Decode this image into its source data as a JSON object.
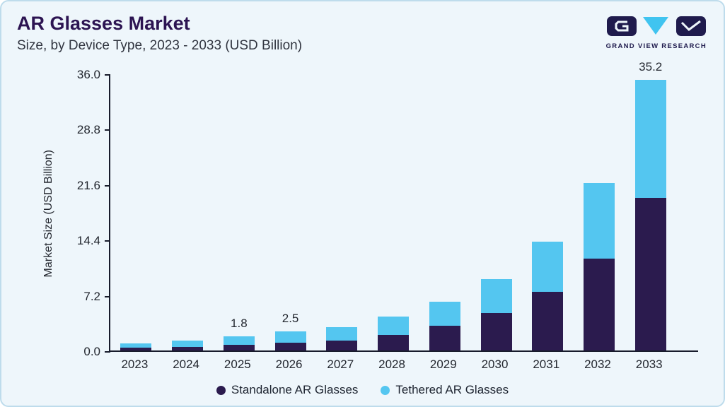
{
  "header": {
    "title": "AR Glasses Market",
    "subtitle": "Size, by Device Type, 2023 - 2033 (USD Billion)"
  },
  "logo": {
    "text": "GRAND VIEW RESEARCH"
  },
  "chart_data": {
    "type": "bar",
    "stacked": true,
    "title": "AR Glasses Market Size, by Device Type, 2023 - 2033 (USD Billion)",
    "xlabel": "",
    "ylabel": "Market Size (USD Billion)",
    "ylim": [
      0,
      36
    ],
    "yticks": [
      "0.0",
      "7.2",
      "14.4",
      "21.6",
      "28.8",
      "36.0"
    ],
    "grid": false,
    "legend_position": "bottom",
    "categories": [
      "2023",
      "2024",
      "2025",
      "2026",
      "2027",
      "2028",
      "2029",
      "2030",
      "2031",
      "2032",
      "2033"
    ],
    "series": [
      {
        "name": "Standalone AR Glasses",
        "color": "#2b1b4e",
        "values": [
          0.4,
          0.5,
          0.7,
          1.0,
          1.3,
          2.0,
          3.2,
          4.9,
          7.6,
          11.9,
          19.8
        ]
      },
      {
        "name": "Tethered AR Glasses",
        "color": "#54c6f0",
        "values": [
          0.5,
          0.8,
          1.1,
          1.5,
          1.7,
          2.4,
          3.1,
          4.4,
          6.5,
          9.9,
          15.4
        ]
      }
    ],
    "value_labels": {
      "2025": "1.8",
      "2026": "2.5",
      "2033": "35.2"
    }
  }
}
